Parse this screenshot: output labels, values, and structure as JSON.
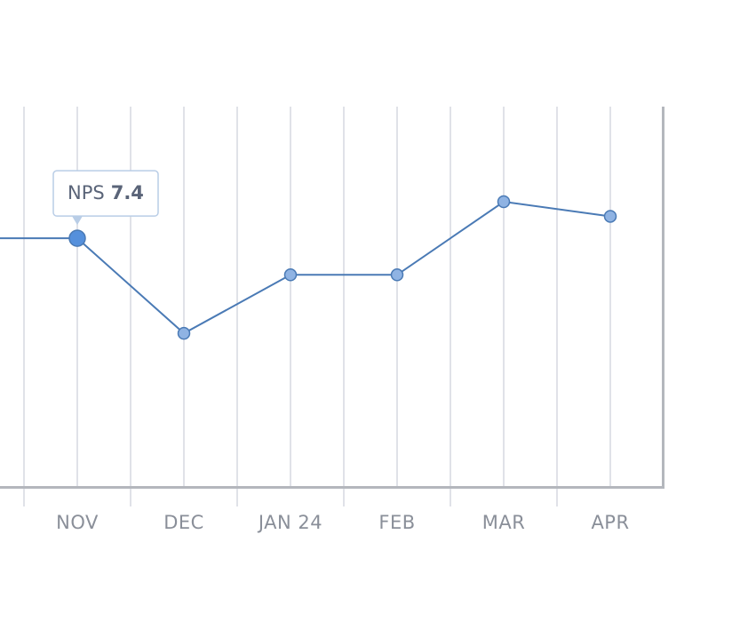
{
  "chart_data": {
    "type": "line",
    "categories": [
      null,
      "NOV",
      "DEC",
      "JAN 24",
      "FEB",
      "MAR",
      "APR"
    ],
    "values": [
      7.4,
      7.4,
      6.1,
      6.9,
      6.9,
      7.9,
      7.7
    ],
    "ylim": [
      4,
      9.2
    ],
    "color": "#4a7ab5",
    "tooltip": {
      "label": "NPS",
      "index": 1
    }
  }
}
